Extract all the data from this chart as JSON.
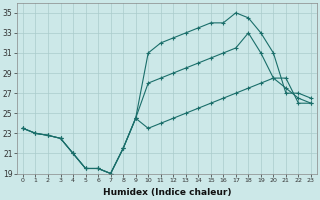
{
  "xlabel": "Humidex (Indice chaleur)",
  "bg_color": "#cce8e8",
  "grid_color": "#aacccc",
  "line_color": "#1a6e6a",
  "xlim": [
    -0.5,
    23.5
  ],
  "ylim": [
    19,
    36
  ],
  "yticks": [
    19,
    21,
    23,
    25,
    27,
    29,
    31,
    33,
    35
  ],
  "xticks": [
    0,
    1,
    2,
    3,
    4,
    5,
    6,
    7,
    8,
    9,
    10,
    11,
    12,
    13,
    14,
    15,
    16,
    17,
    18,
    19,
    20,
    21,
    22,
    23
  ],
  "series1_x": [
    0,
    1,
    2,
    3,
    4,
    5,
    6,
    7,
    8,
    9,
    10,
    11,
    12,
    13,
    14,
    15,
    16,
    17,
    18,
    19,
    20,
    21,
    22,
    23
  ],
  "series1_y": [
    23.5,
    23.0,
    22.8,
    22.5,
    21.0,
    19.5,
    19.5,
    19.0,
    21.5,
    24.5,
    23.5,
    24.0,
    24.5,
    25.0,
    25.5,
    26.0,
    26.5,
    27.0,
    27.5,
    28.0,
    28.5,
    28.5,
    26.0,
    26.0
  ],
  "series2_x": [
    0,
    1,
    2,
    3,
    4,
    5,
    6,
    7,
    8,
    9,
    10,
    11,
    12,
    13,
    14,
    15,
    16,
    17,
    18,
    19,
    20,
    21,
    22,
    23
  ],
  "series2_y": [
    23.5,
    23.0,
    22.8,
    22.5,
    21.0,
    19.5,
    19.5,
    19.0,
    21.5,
    24.5,
    31.0,
    32.0,
    32.5,
    33.0,
    33.5,
    34.0,
    34.0,
    35.0,
    34.5,
    33.0,
    31.0,
    27.0,
    27.0,
    26.5
  ],
  "series3_x": [
    0,
    1,
    2,
    3,
    4,
    5,
    6,
    7,
    8,
    9,
    10,
    11,
    12,
    13,
    14,
    15,
    16,
    17,
    18,
    19,
    20,
    21,
    22,
    23
  ],
  "series3_y": [
    23.5,
    23.0,
    22.8,
    22.5,
    21.0,
    19.5,
    19.5,
    19.0,
    21.5,
    24.5,
    28.0,
    28.5,
    29.0,
    29.5,
    30.0,
    30.5,
    31.0,
    31.5,
    33.0,
    31.0,
    28.5,
    27.5,
    26.5,
    26.0
  ]
}
